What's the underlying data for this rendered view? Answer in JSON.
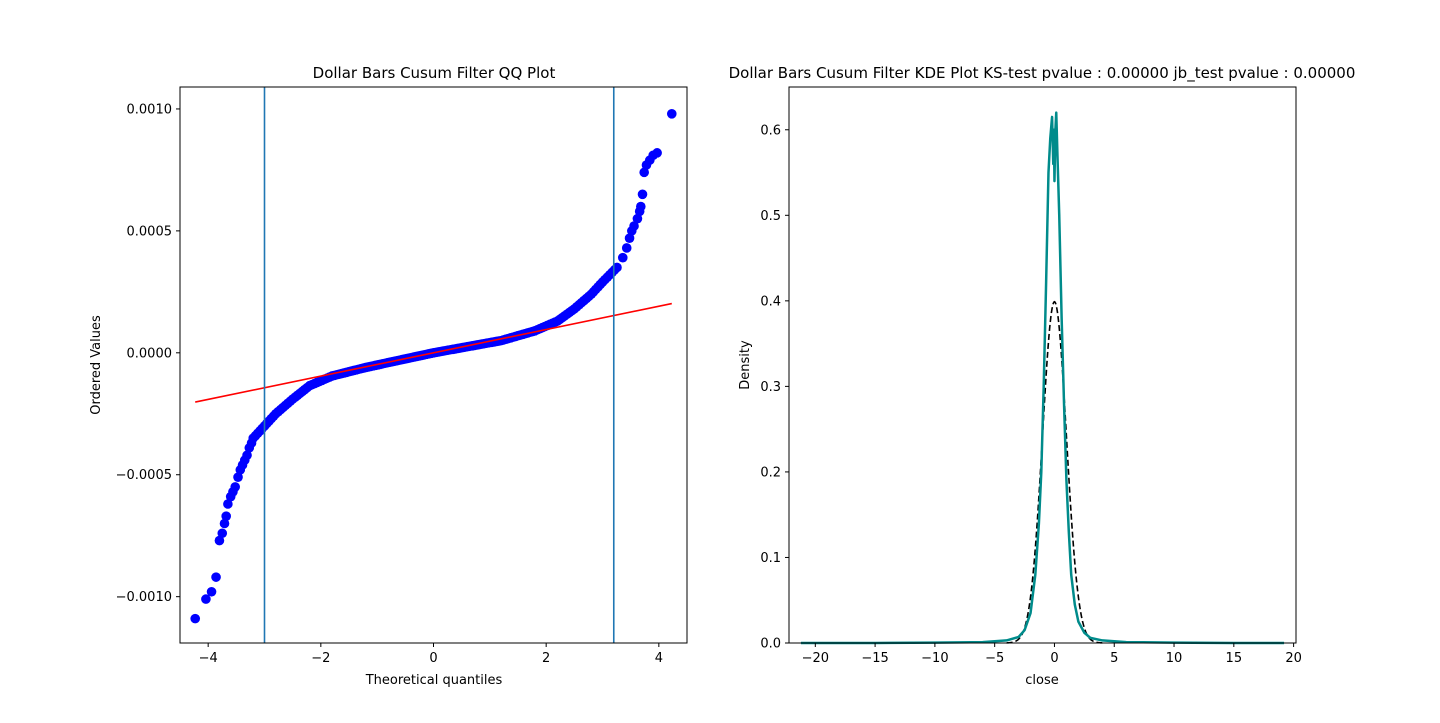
{
  "chart_data": [
    {
      "type": "scatter",
      "title": "Dollar Bars Cusum Filter QQ Plot",
      "xlabel": "Theoretical quantiles",
      "ylabel": "Ordered Values",
      "xlim": [
        -4.5,
        4.5
      ],
      "ylim": [
        -0.00119,
        0.00109
      ],
      "xticks": [
        -4,
        -2,
        0,
        2,
        4
      ],
      "xticklabels": [
        "−4",
        "−2",
        "0",
        "2",
        "4"
      ],
      "yticks": [
        -0.001,
        -0.0005,
        0.0,
        0.0005,
        0.001
      ],
      "yticklabels": [
        "−0.0010",
        "−0.0005",
        "0.0000",
        "0.0005",
        "0.0010"
      ],
      "grid": false,
      "vlines": [
        -3.0,
        3.2
      ],
      "fit_line": {
        "x": [
          -4.23,
          4.23
        ],
        "y": [
          -0.000202,
          0.000202
        ]
      },
      "sample_color": "#0000ff",
      "fit_color": "#ff0000",
      "vline_color": "#1f77b4",
      "tail_points": [
        [
          -4.23,
          -0.00109
        ],
        [
          -4.04,
          -0.00101
        ],
        [
          -3.94,
          -0.00098
        ],
        [
          -3.86,
          -0.00092
        ],
        [
          -3.8,
          -0.00077
        ],
        [
          -3.75,
          -0.00074
        ],
        [
          -3.71,
          -0.0007
        ],
        [
          -3.68,
          -0.00067
        ],
        [
          -3.65,
          -0.00062
        ],
        [
          -3.6,
          -0.00059
        ],
        [
          -3.56,
          -0.00057
        ],
        [
          -3.52,
          -0.00055
        ],
        [
          -3.47,
          -0.00051
        ],
        [
          -3.43,
          -0.00048
        ],
        [
          -3.39,
          -0.00046
        ],
        [
          -3.35,
          -0.00044
        ],
        [
          -3.31,
          -0.00042
        ],
        [
          -3.27,
          -0.00039
        ],
        [
          -3.23,
          -0.00037
        ],
        [
          3.36,
          0.00039
        ],
        [
          3.43,
          0.00043
        ],
        [
          3.48,
          0.00047
        ],
        [
          3.52,
          0.0005
        ],
        [
          3.56,
          0.00052
        ],
        [
          3.62,
          0.00055
        ],
        [
          3.66,
          0.00058
        ],
        [
          3.68,
          0.0006
        ],
        [
          3.71,
          0.00065
        ],
        [
          3.74,
          0.00074
        ],
        [
          3.78,
          0.00077
        ],
        [
          3.84,
          0.00079
        ],
        [
          3.9,
          0.00081
        ],
        [
          3.97,
          0.00082
        ],
        [
          4.23,
          0.00098
        ]
      ],
      "body_curve": [
        [
          -3.2,
          -0.00035
        ],
        [
          -3.0,
          -0.0003
        ],
        [
          -2.8,
          -0.00025
        ],
        [
          -2.5,
          -0.00019
        ],
        [
          -2.2,
          -0.000135
        ],
        [
          -1.8,
          -9.5e-05
        ],
        [
          -1.2,
          -6e-05
        ],
        [
          -0.6,
          -3e-05
        ],
        [
          0.0,
          0.0
        ],
        [
          0.6,
          2.5e-05
        ],
        [
          1.2,
          5e-05
        ],
        [
          1.8,
          9e-05
        ],
        [
          2.2,
          0.00013
        ],
        [
          2.5,
          0.00018
        ],
        [
          2.8,
          0.00024
        ],
        [
          3.0,
          0.00029
        ],
        [
          3.3,
          0.00036
        ]
      ]
    },
    {
      "type": "line",
      "title": "Dollar Bars Cusum Filter KDE Plot KS-test pvalue : 0.00000 jb_test pvalue : 0.00000",
      "xlabel": "close",
      "ylabel": "Density",
      "xlim": [
        -22.2,
        20.2
      ],
      "ylim": [
        0.0,
        0.65
      ],
      "xticks": [
        -20,
        -15,
        -10,
        -5,
        0,
        5,
        10,
        15,
        20
      ],
      "xticklabels": [
        "−20",
        "−15",
        "−10",
        "−5",
        "0",
        "5",
        "10",
        "15",
        "20"
      ],
      "yticks": [
        0.0,
        0.1,
        0.2,
        0.3,
        0.4,
        0.5,
        0.6
      ],
      "yticklabels": [
        "0.0",
        "0.1",
        "0.2",
        "0.3",
        "0.4",
        "0.5",
        "0.6"
      ],
      "grid": false,
      "series": [
        {
          "style": "solid",
          "color": "#008b8b",
          "points": [
            [
              -21.2,
              0.0
            ],
            [
              -15.0,
              0.0
            ],
            [
              -10.0,
              0.0005
            ],
            [
              -6.0,
              0.001
            ],
            [
              -4.0,
              0.003
            ],
            [
              -3.0,
              0.007
            ],
            [
              -2.5,
              0.015
            ],
            [
              -2.0,
              0.035
            ],
            [
              -1.6,
              0.08
            ],
            [
              -1.3,
              0.14
            ],
            [
              -1.1,
              0.2
            ],
            [
              -0.9,
              0.3
            ],
            [
              -0.7,
              0.42
            ],
            [
              -0.5,
              0.55
            ],
            [
              -0.35,
              0.59
            ],
            [
              -0.2,
              0.615
            ],
            [
              -0.1,
              0.56
            ],
            [
              -0.05,
              0.6
            ],
            [
              0.0,
              0.54
            ],
            [
              0.08,
              0.6
            ],
            [
              0.15,
              0.62
            ],
            [
              0.25,
              0.57
            ],
            [
              0.4,
              0.5
            ],
            [
              0.6,
              0.38
            ],
            [
              0.8,
              0.28
            ],
            [
              1.0,
              0.19
            ],
            [
              1.2,
              0.13
            ],
            [
              1.4,
              0.08
            ],
            [
              1.7,
              0.045
            ],
            [
              2.0,
              0.025
            ],
            [
              2.5,
              0.012
            ],
            [
              3.0,
              0.006
            ],
            [
              4.0,
              0.003
            ],
            [
              6.0,
              0.001
            ],
            [
              10.0,
              0.0005
            ],
            [
              15.0,
              0.0
            ],
            [
              19.2,
              0.0
            ]
          ]
        },
        {
          "style": "dashed",
          "color": "#000000",
          "normal_pdf": {
            "mean": 0.0,
            "std": 1.0,
            "xrange": [
              -4.0,
              4.0
            ]
          }
        }
      ]
    }
  ]
}
